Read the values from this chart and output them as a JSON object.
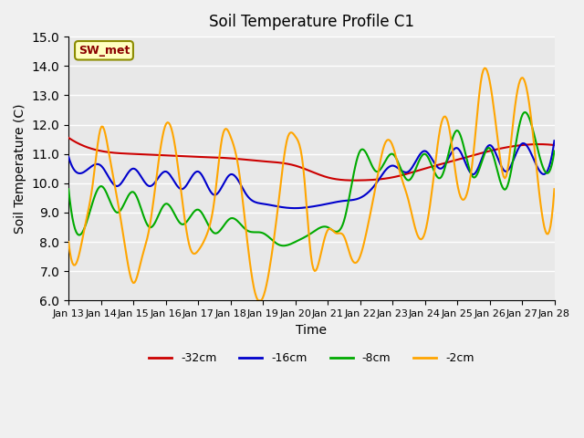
{
  "title": "Soil Temperature Profile C1",
  "xlabel": "Time",
  "ylabel": "Soil Temperature (C)",
  "ylim": [
    6.0,
    15.0
  ],
  "yticks": [
    6.0,
    7.0,
    8.0,
    9.0,
    10.0,
    11.0,
    12.0,
    13.0,
    14.0,
    15.0
  ],
  "x_labels": [
    "Jan 13",
    "Jan 14",
    "Jan 15",
    "Jan 16",
    "Jan 17",
    "Jan 18",
    "Jan 19",
    "Jan 20",
    "Jan 21",
    "Jan 22",
    "Jan 23",
    "Jan 24",
    "Jan 25",
    "Jan 26",
    "Jan 27",
    "Jan 28"
  ],
  "station_label": "SW_met",
  "colors": {
    "red": "#CC0000",
    "blue": "#0000CC",
    "green": "#00AA00",
    "orange": "#FFA500"
  },
  "legend_labels": [
    "-32cm",
    "-16cm",
    "-8cm",
    "-2cm"
  ],
  "background_color": "#E8E8E8",
  "plot_bg_color": "#E0E0E0"
}
